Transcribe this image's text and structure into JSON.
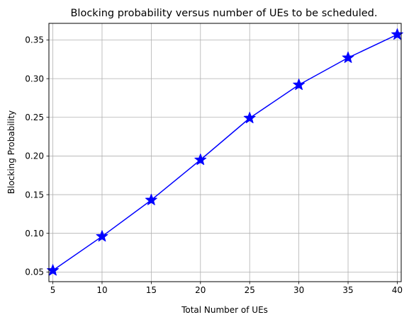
{
  "chart_data": {
    "type": "line",
    "title": "Blocking probability versus number of UEs to be scheduled.",
    "xlabel": "Total Number of UEs",
    "ylabel": "Blocking Probability",
    "xlim": [
      4.6,
      40.4
    ],
    "ylim": [
      0.0375,
      0.3715
    ],
    "x_ticks": [
      5,
      10,
      15,
      20,
      25,
      30,
      35,
      40
    ],
    "y_ticks": [
      0.05,
      0.1,
      0.15,
      0.2,
      0.25,
      0.3,
      0.35
    ],
    "x_tick_labels": [
      "5",
      "10",
      "15",
      "20",
      "25",
      "30",
      "35",
      "40"
    ],
    "y_tick_labels": [
      "0.05",
      "0.10",
      "0.15",
      "0.20",
      "0.25",
      "0.30",
      "0.35"
    ],
    "grid": true,
    "series": [
      {
        "x": [
          5,
          10,
          15,
          20,
          25,
          30,
          35,
          40
        ],
        "values": [
          0.052,
          0.096,
          0.143,
          0.195,
          0.249,
          0.292,
          0.327,
          0.357
        ],
        "color": "#0000ff",
        "marker": "star"
      }
    ]
  }
}
